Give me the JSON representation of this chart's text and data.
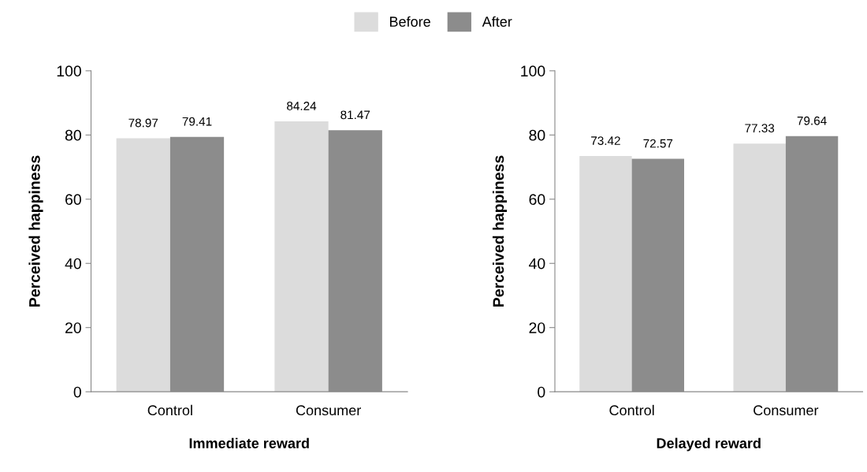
{
  "chart_data": [
    {
      "type": "bar",
      "categories": [
        "Control",
        "Consumer"
      ],
      "xlabel": "Immediate reward",
      "ylabel": "Perceived happiness",
      "ylim": [
        0,
        100
      ],
      "yticks": [
        0,
        20,
        40,
        60,
        80,
        100
      ],
      "grid": false,
      "legend": "top",
      "data_labels": true,
      "series": [
        {
          "name": "Before",
          "color": "#dcdcdc",
          "values": [
            78.97,
            84.24
          ]
        },
        {
          "name": "After",
          "color": "#8c8c8c",
          "values": [
            79.41,
            81.47
          ]
        }
      ]
    },
    {
      "type": "bar",
      "categories": [
        "Control",
        "Consumer"
      ],
      "xlabel": "Delayed reward",
      "ylabel": "Perceived happiness",
      "ylim": [
        0,
        100
      ],
      "yticks": [
        0,
        20,
        40,
        60,
        80,
        100
      ],
      "grid": false,
      "data_labels": true,
      "series": [
        {
          "name": "Before",
          "color": "#dcdcdc",
          "values": [
            73.42,
            77.33
          ]
        },
        {
          "name": "After",
          "color": "#8c8c8c",
          "values": [
            72.57,
            79.64
          ]
        }
      ]
    }
  ]
}
